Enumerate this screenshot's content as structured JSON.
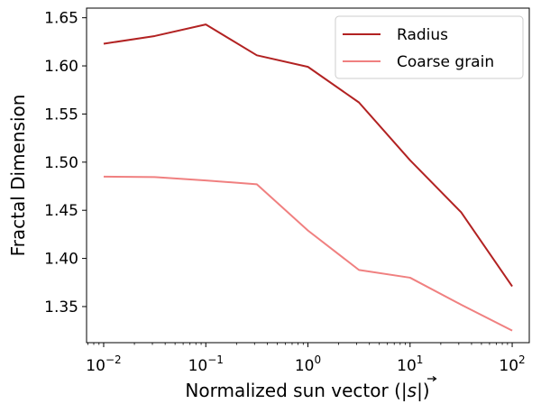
{
  "chart_data": {
    "type": "line",
    "xscale": "log",
    "x": [
      0.01,
      0.0316,
      0.1,
      0.316,
      1,
      3.16,
      10,
      31.6,
      100
    ],
    "xlim": [
      0.0068,
      147
    ],
    "ylim": [
      1.3125,
      1.66
    ],
    "xticks": [
      {
        "value": 0.01,
        "base": "10",
        "exp": "−2"
      },
      {
        "value": 0.1,
        "base": "10",
        "exp": "−1"
      },
      {
        "value": 1,
        "base": "10",
        "exp": "0"
      },
      {
        "value": 10,
        "base": "10",
        "exp": "1"
      },
      {
        "value": 100,
        "base": "10",
        "exp": "2"
      }
    ],
    "yticks": [
      1.35,
      1.4,
      1.45,
      1.5,
      1.55,
      1.6,
      1.65
    ],
    "ytick_labels": [
      "1.35",
      "1.40",
      "1.45",
      "1.50",
      "1.55",
      "1.60",
      "1.65"
    ],
    "xlabel_text": "Normalized sun vector (|",
    "xlabel_symbol": "s",
    "xlabel_close": "|)",
    "ylabel": "Fractal Dimension",
    "legend_position": "upper-right",
    "grid": false,
    "series": [
      {
        "name": "Radius",
        "color": "#b22222",
        "values": [
          1.623,
          1.631,
          1.643,
          1.611,
          1.599,
          1.562,
          1.502,
          1.448,
          1.371
        ]
      },
      {
        "name": "Coarse grain",
        "color": "#f08080",
        "values": [
          1.485,
          1.4845,
          1.481,
          1.477,
          1.429,
          1.388,
          1.38,
          1.352,
          1.325
        ]
      }
    ]
  }
}
